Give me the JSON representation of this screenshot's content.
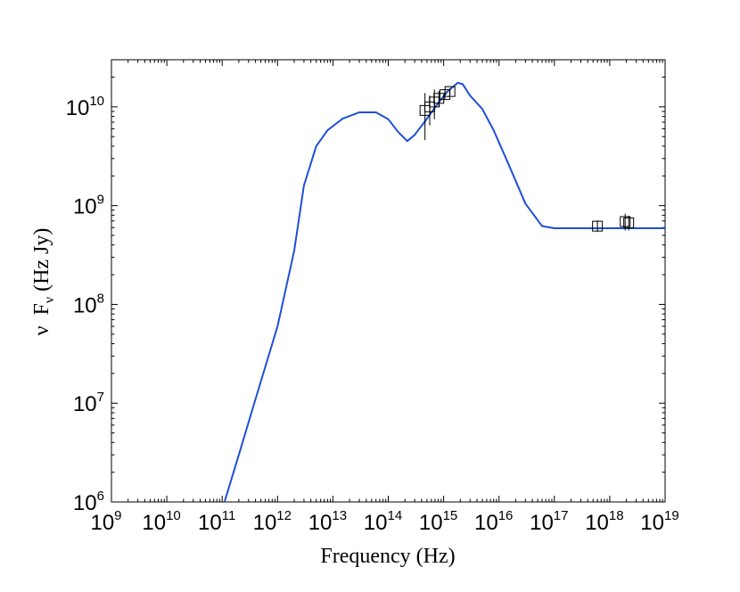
{
  "chart_data": {
    "type": "line",
    "title": "",
    "xlabel": "Frequency (Hz)",
    "ylabel_parts": {
      "nu": "ν",
      "F": "F",
      "sub": "ν",
      "unit": "(Hz Jy)"
    },
    "xscale": "log",
    "yscale": "log",
    "xlim": [
      1000000000.0,
      1e+19
    ],
    "ylim": [
      1000000.0,
      30000000000.0
    ],
    "grid": false,
    "x_ticks": [
      {
        "base": "10",
        "exp": "9"
      },
      {
        "base": "10",
        "exp": "10"
      },
      {
        "base": "10",
        "exp": "11"
      },
      {
        "base": "10",
        "exp": "12"
      },
      {
        "base": "10",
        "exp": "13"
      },
      {
        "base": "10",
        "exp": "14"
      },
      {
        "base": "10",
        "exp": "15"
      },
      {
        "base": "10",
        "exp": "16"
      },
      {
        "base": "10",
        "exp": "17"
      },
      {
        "base": "10",
        "exp": "18"
      },
      {
        "base": "10",
        "exp": "19"
      }
    ],
    "y_ticks": [
      {
        "base": "10",
        "exp": "6"
      },
      {
        "base": "10",
        "exp": "7"
      },
      {
        "base": "10",
        "exp": "8"
      },
      {
        "base": "10",
        "exp": "9"
      },
      {
        "base": "10",
        "exp": "10"
      }
    ],
    "series": [
      {
        "kind": "model-line",
        "color": "#1f4fd8",
        "x": [
          110000000000.0,
          200000000000.0,
          400000000000.0,
          1000000000000.0,
          2000000000000.0,
          3000000000000.0,
          5000000000000.0,
          8000000000000.0,
          15000000000000.0,
          30000000000000.0,
          60000000000000.0,
          100000000000000.0,
          150000000000000.0,
          220000000000000.0,
          300000000000000.0,
          500000000000000.0,
          800000000000000.0,
          1200000000000000.0,
          1800000000000000.0,
          2200000000000000.0,
          3000000000000000.0,
          5000000000000000.0,
          8000000000000000.0,
          1.5e+16,
          3e+16,
          6e+16,
          1e+17,
          3e+17,
          1e+18,
          1e+19
        ],
        "y": [
          1000000.0,
          3000000.0,
          11000000.0,
          60000000.0,
          350000000.0,
          1600000000.0,
          4000000000.0,
          5800000000.0,
          7600000000.0,
          8800000000.0,
          8800000000.0,
          7500000000.0,
          5600000000.0,
          4500000000.0,
          5200000000.0,
          7600000000.0,
          11000000000.0,
          14500000000.0,
          17500000000.0,
          17000000000.0,
          13000000000.0,
          9500000000.0,
          5800000000.0,
          2600000000.0,
          1050000000.0,
          620000000.0,
          590000000.0,
          590000000.0,
          590000000.0,
          590000000.0
        ]
      },
      {
        "kind": "data-points",
        "marker": "square",
        "color": "#000000",
        "points": [
          {
            "x": 460000000000000.0,
            "y": 9200000000.0,
            "ylo": 4600000000.0,
            "yhi": 13800000000.0
          },
          {
            "x": 560000000000000.0,
            "y": 10000000000.0,
            "ylo": 6500000000.0,
            "yhi": 13000000000.0
          },
          {
            "x": 680000000000000.0,
            "y": 11200000000.0,
            "ylo": 7500000000.0,
            "yhi": 15000000000.0
          },
          {
            "x": 820000000000000.0,
            "y": 12200000000.0,
            "ylo": 10000000000.0,
            "yhi": 14500000000.0
          },
          {
            "x": 1050000000000000.0,
            "y": 13300000000.0,
            "ylo": 12000000000.0,
            "yhi": 14500000000.0
          },
          {
            "x": 1300000000000000.0,
            "y": 14300000000.0,
            "ylo": 13200000000.0,
            "yhi": 15500000000.0
          },
          {
            "x": 6e+17,
            "y": 620000000.0,
            "ylo": 540000000.0,
            "yhi": 710000000.0
          },
          {
            "x": 1.9e+18,
            "y": 690000000.0,
            "ylo": 560000000.0,
            "yhi": 830000000.0
          },
          {
            "x": 2.2e+18,
            "y": 670000000.0,
            "ylo": 560000000.0,
            "yhi": 790000000.0
          }
        ]
      }
    ]
  }
}
